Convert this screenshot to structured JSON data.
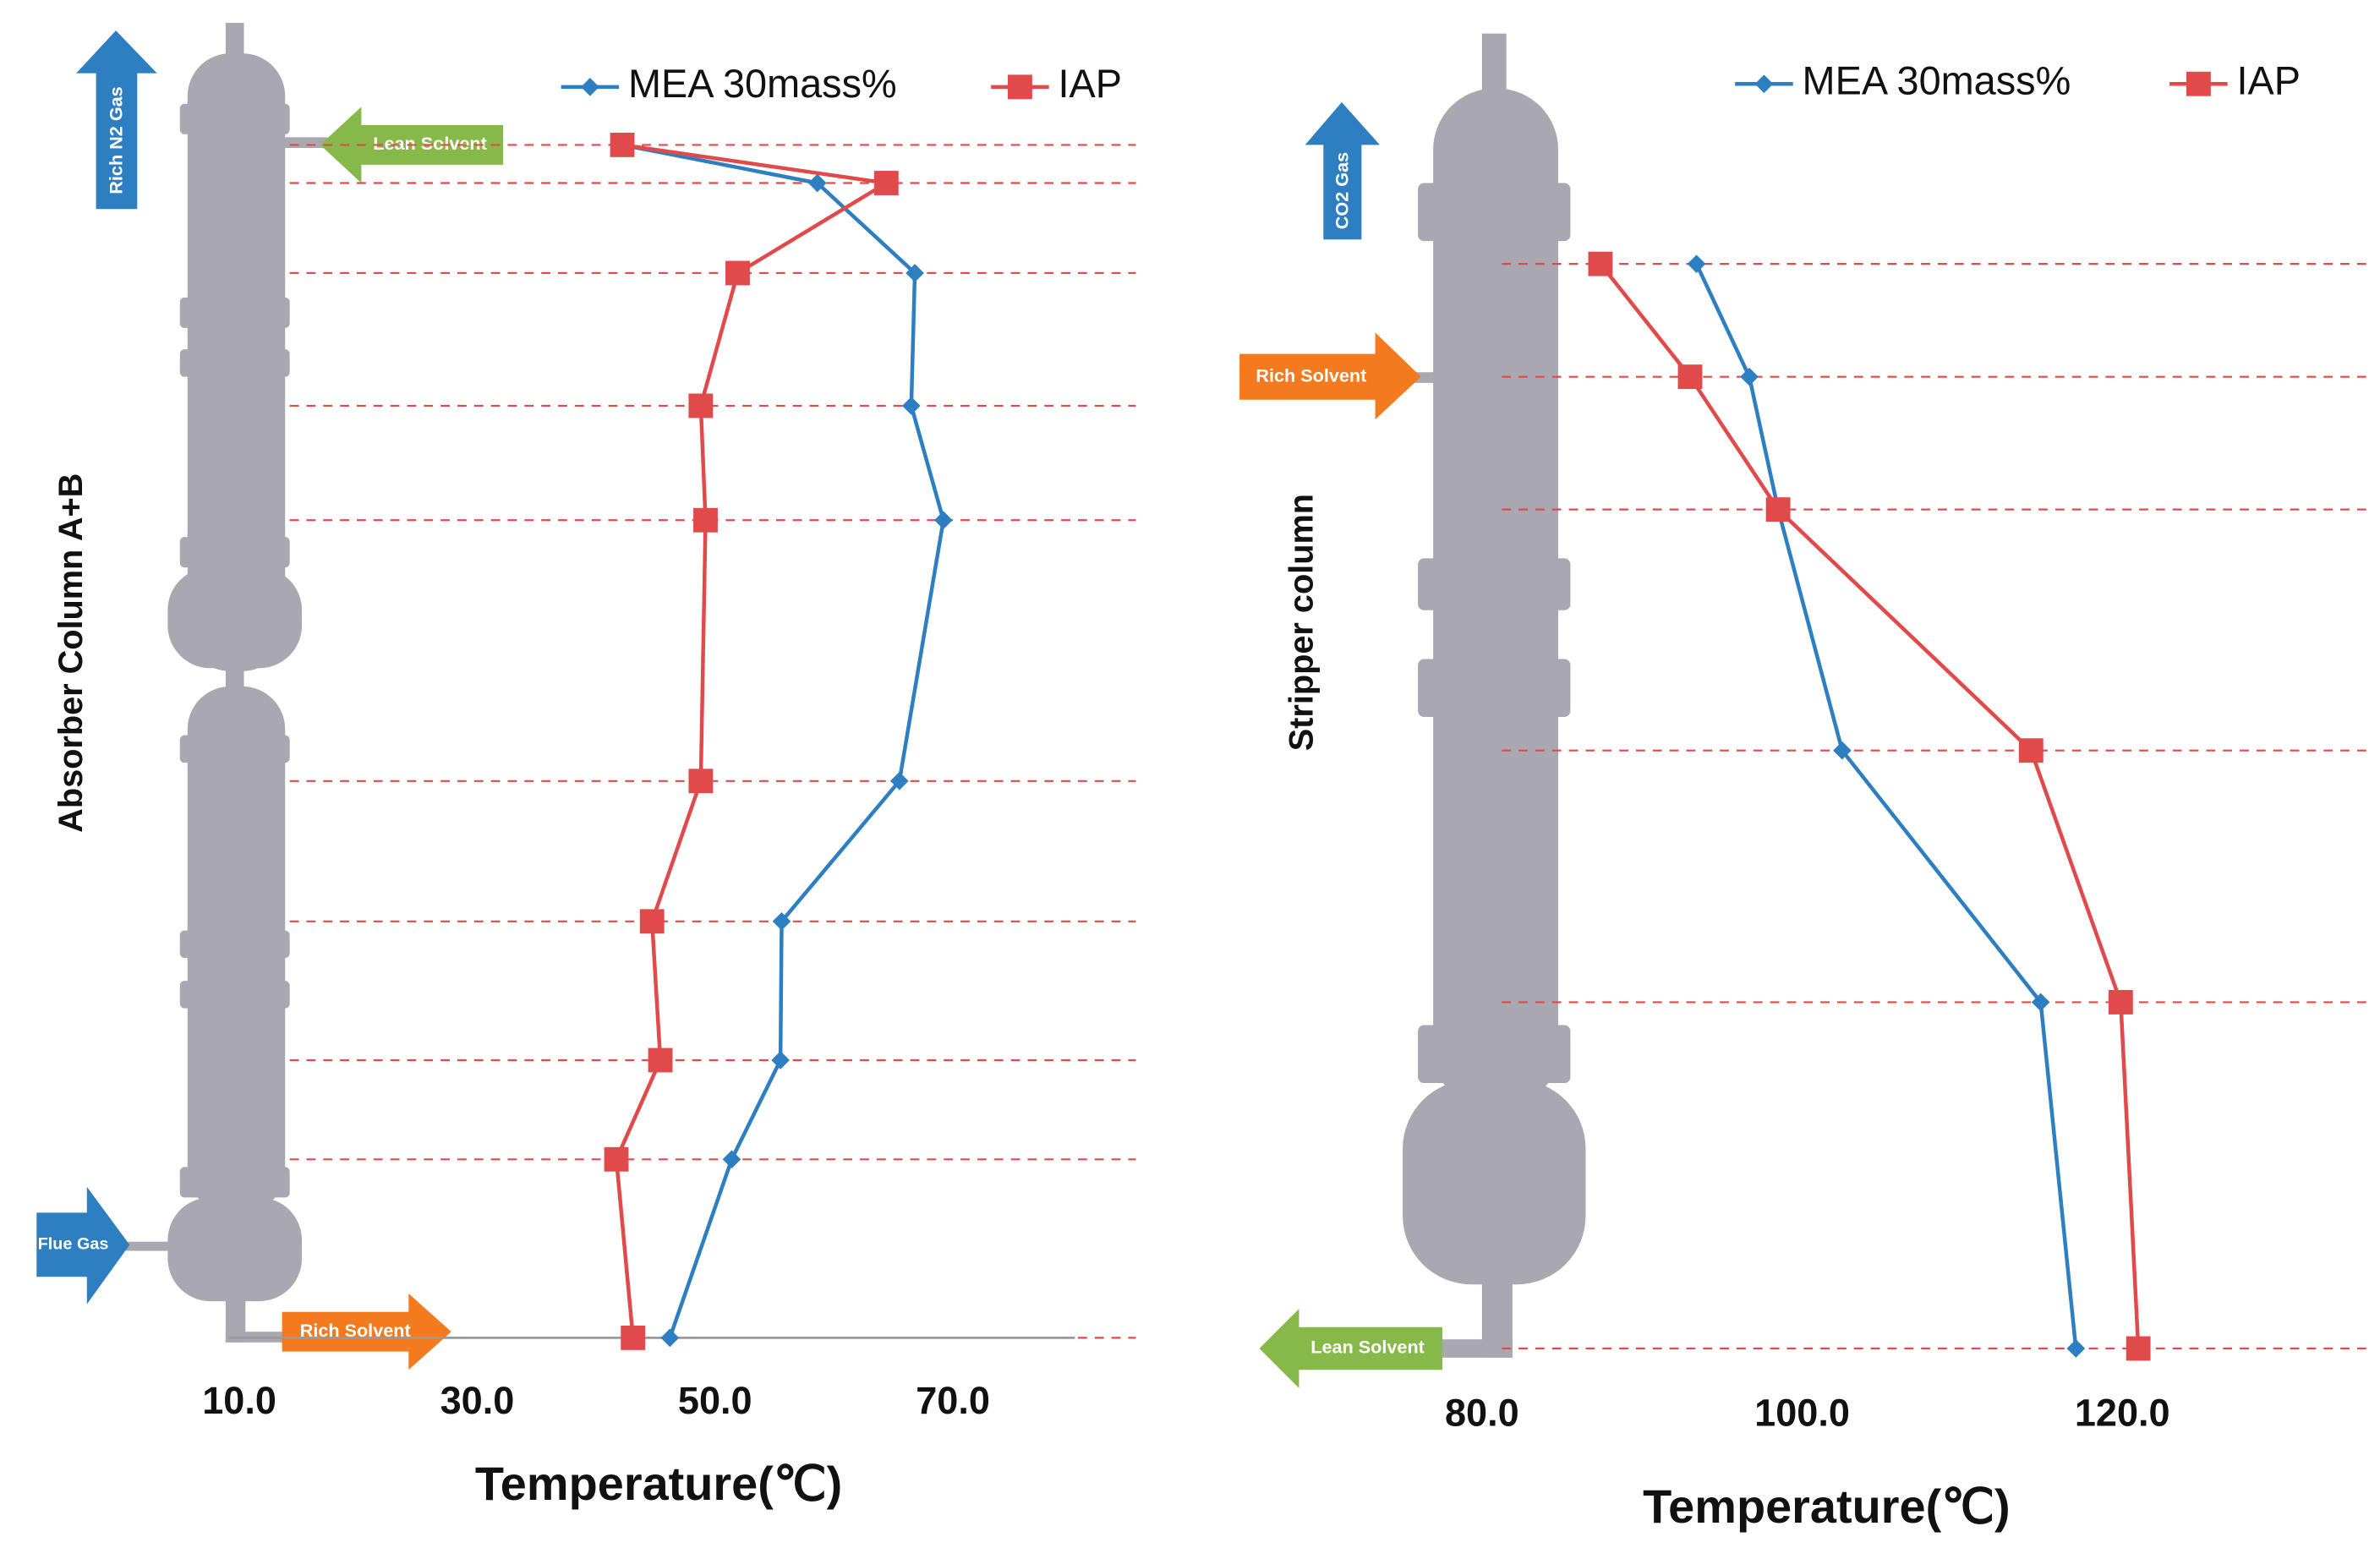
{
  "chart_data": [
    {
      "type": "line",
      "xlabel": "Temperature(℃)",
      "ylabel": "Absorber Column A+B",
      "categories": [
        null,
        null,
        null,
        null,
        null,
        null,
        null,
        null,
        null,
        null
      ],
      "series": [
        {
          "name": "MEA 30mass%",
          "color": "#2e7fc1",
          "marker": "diamond",
          "values": [
            42.2,
            58.6,
            66.8,
            66.5,
            69.2,
            65.5,
            55.6,
            55.5,
            51.4,
            46.2
          ]
        },
        {
          "name": "IAP",
          "color": "#e04a4a",
          "marker": "square",
          "values": [
            42.2,
            64.4,
            51.9,
            48.8,
            49.2,
            48.8,
            44.7,
            45.4,
            41.7,
            43.1
          ]
        }
      ],
      "xlim": [
        10,
        80
      ],
      "xticks": [
        {
          "value": 10,
          "label": "10.0"
        },
        {
          "value": 30,
          "label": "30.0"
        },
        {
          "value": 50,
          "label": "50.0"
        },
        {
          "value": 70,
          "label": "70.0"
        }
      ],
      "annotations": [
        "Rich N2 Gas",
        "Lean Solvent",
        "Rich Solvent",
        "Flue Gas"
      ]
    },
    {
      "type": "line",
      "xlabel": "Temperature(℃)",
      "ylabel": "Stripper column",
      "categories": [
        null,
        null,
        null,
        null,
        null,
        null
      ],
      "series": [
        {
          "name": "MEA 30mass%",
          "color": "#2e7fc1",
          "marker": "diamond",
          "values": [
            93.4,
            96.7,
            98.5,
            102.5,
            114.9,
            117.1
          ]
        },
        {
          "name": "IAP",
          "color": "#e04a4a",
          "marker": "square",
          "values": [
            87.4,
            93.0,
            98.5,
            114.3,
            119.9,
            121.0
          ]
        }
      ],
      "xlim": [
        77,
        135
      ],
      "xticks": [
        {
          "value": 80,
          "label": "80.0"
        },
        {
          "value": 100,
          "label": "100.0"
        },
        {
          "value": 120,
          "label": "120.0"
        }
      ],
      "annotations": [
        "CO2 Gas",
        "Rich Solvent",
        "Lean Solvent"
      ]
    }
  ]
}
